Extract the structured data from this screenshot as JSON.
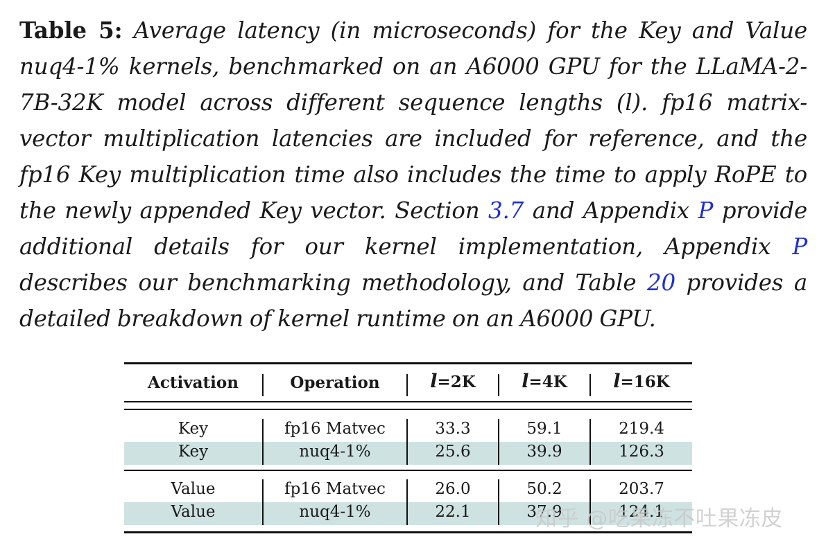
{
  "caption": {
    "label": "Table 5:",
    "seg1": " Average latency (in microseconds) for the Key and Value nuq4-1% kernels, benchmarked on an A6000 GPU for the LLaMA-2-7B-32K model across different sequence lengths (",
    "l_symbol": "l",
    "seg2": "). fp16 matrix-vector multiplication latencies are included for reference, and the fp16 Key multiplication time also includes the time to apply RoPE to the newly appended Key vector. Section ",
    "ref_section": "3.7",
    "seg3": " and Appendix ",
    "ref_appendix1": "P",
    "seg4": " provide additional details for our kernel implementation, Appendix ",
    "ref_appendix2": "P",
    "seg5": " describes our benchmarking methodology, and Table ",
    "ref_table": "20",
    "seg6": " provides a detailed breakdown of kernel runtime on an A6000 GPU."
  },
  "table": {
    "headers": {
      "activation": "Activation",
      "operation": "Operation",
      "seq": [
        {
          "sym": "l",
          "val": "=2K"
        },
        {
          "sym": "l",
          "val": "=4K"
        },
        {
          "sym": "l",
          "val": "=16K"
        }
      ]
    },
    "rows": [
      {
        "activation": "Key",
        "operation": "fp16 Matvec",
        "values": [
          "33.3",
          "59.1",
          "219.4"
        ]
      },
      {
        "activation": "Key",
        "operation": "nuq4-1%",
        "values": [
          "25.6",
          "39.9",
          "126.3"
        ]
      },
      {
        "activation": "Value",
        "operation": "fp16 Matvec",
        "values": [
          "26.0",
          "50.2",
          "203.7"
        ]
      },
      {
        "activation": "Value",
        "operation": "nuq4-1%",
        "values": [
          "22.1",
          "37.9",
          "124.1"
        ]
      }
    ],
    "band_color": "#cfe2e2"
  },
  "watermark": "知乎 @吃果冻不吐果冻皮",
  "colors": {
    "link": "#1f2fd0",
    "text": "#1a1a1a"
  }
}
